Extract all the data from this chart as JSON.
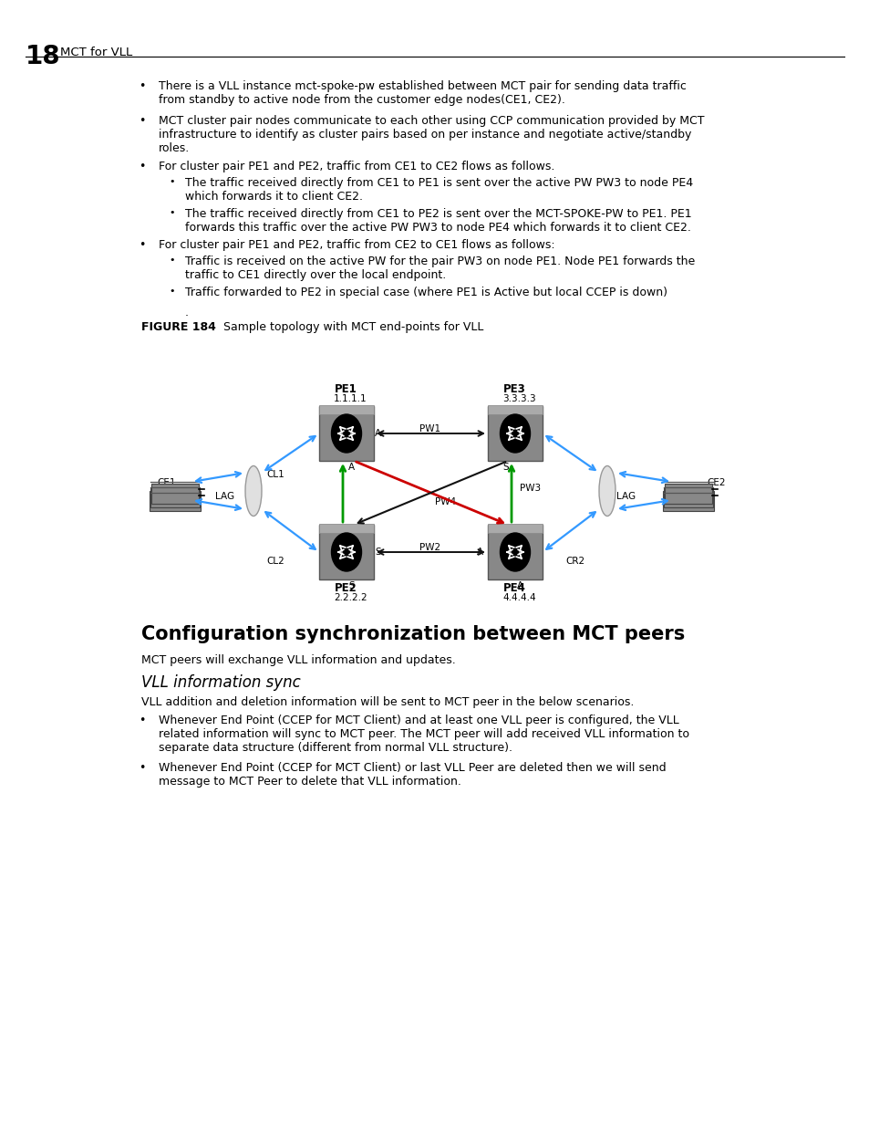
{
  "page_number": "18",
  "chapter_title": "MCT for VLL",
  "bullet_points": [
    "There is a VLL instance mct-spoke-pw established between MCT pair for sending data traffic\nfrom standby to active node from the customer edge nodes(CE1, CE2).",
    "MCT cluster pair nodes communicate to each other using CCP communication provided by MCT\ninfrastructure to identify as cluster pairs based on per instance and negotiate active/standby\nroles.",
    "For cluster pair PE1 and PE2, traffic from CE1 to CE2 flows as follows.",
    "For cluster pair PE1 and PE2, traffic from CE2 to CE1 flows as follows:"
  ],
  "sub_bullets_1": [
    "The traffic received directly from CE1 to PE1 is sent over the active PW PW3 to node PE4\nwhich forwards it to client CE2.",
    "The traffic received directly from CE1 to PE2 is sent over the MCT-SPOKE-PW to PE1. PE1\nforwards this traffic over the active PW PW3 to node PE4 which forwards it to client CE2."
  ],
  "sub_bullets_2": [
    "Traffic is received on the active PW for the pair PW3 on node PE1. Node PE1 forwards the\ntraffic to CE1 directly over the local endpoint.",
    "Traffic forwarded to PE2 in special case (where PE1 is Active but local CCEP is down)"
  ],
  "figure_label": "FIGURE 184",
  "figure_title": "   Sample topology with MCT end-points for VLL",
  "section_title": "Configuration synchronization between MCT peers",
  "section_para": "MCT peers will exchange VLL information and updates.",
  "subsection_title": "VLL information sync",
  "subsection_para": "VLL addition and deletion information will be sent to MCT peer in the below scenarios.",
  "bottom_bullets": [
    "Whenever End Point (CCEP for MCT Client) and at least one VLL peer is configured, the VLL\nrelated information will sync to MCT peer. The MCT peer will add received VLL information to\nseparate data structure (different from normal VLL structure).",
    "Whenever End Point (CCEP for MCT Client) or last VLL Peer are deleted then we will send\nmessage to MCT Peer to delete that VLL information."
  ],
  "bg_color": "#ffffff",
  "text_color": "#000000"
}
